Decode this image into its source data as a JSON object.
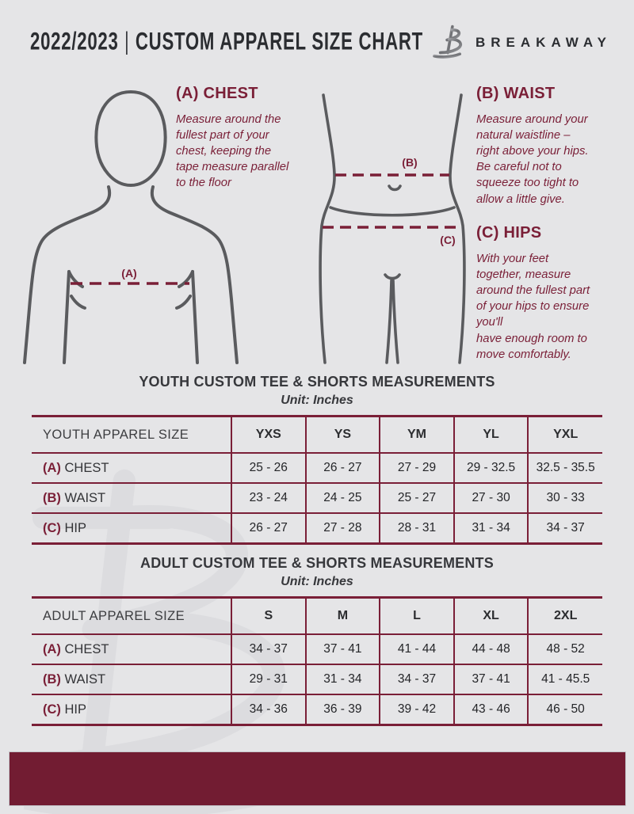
{
  "header": {
    "season": "2022/2023",
    "divider": "|",
    "title": "CUSTOM APPAREL SIZE CHART",
    "brand": "BREAKAWAY",
    "logo_icon": "breakaway-b-monogram"
  },
  "colors": {
    "background": "#e5e5e7",
    "maroon_text": "#7a1f37",
    "footer_bar": "#721c32",
    "figure_outline": "#5a5b5e",
    "dark_text": "#2b2d31"
  },
  "measure_guide": {
    "chest": {
      "heading": "(A) CHEST",
      "body": "Measure around the\nfullest part of your\nchest, keeping the\ntape measure parallel\nto the floor",
      "marker": "(A)"
    },
    "waist": {
      "heading": "(B) WAIST",
      "body": "Measure around your\nnatural waistline –\nright above your hips.\nBe careful not to\nsqueeze too tight to\nallow a little give.",
      "marker": "(B)"
    },
    "hips": {
      "heading": "(C) HIPS",
      "body": "With your feet\ntogether, measure\naround the fullest part\nof your hips to ensure\nyou'll\nhave enough room to\nmove comfortably.",
      "marker": "(C)"
    }
  },
  "youth_table": {
    "title": "YOUTH CUSTOM TEE & SHORTS MEASUREMENTS",
    "unit": "Unit: Inches",
    "corner_label": "YOUTH APPAREL SIZE",
    "sizes": [
      "YXS",
      "YS",
      "YM",
      "YL",
      "YXL"
    ],
    "rows": [
      {
        "prefix": "(A)",
        "label": "CHEST",
        "values": [
          "25 - 26",
          "26 - 27",
          "27 - 29",
          "29 - 32.5",
          "32.5 - 35.5"
        ]
      },
      {
        "prefix": "(B)",
        "label": "WAIST",
        "values": [
          "23 - 24",
          "24 - 25",
          "25 - 27",
          "27 - 30",
          "30 - 33"
        ]
      },
      {
        "prefix": "(C)",
        "label": "HIP",
        "values": [
          "26 - 27",
          "27 - 28",
          "28 - 31",
          "31 - 34",
          "34 - 37"
        ]
      }
    ]
  },
  "adult_table": {
    "title": "ADULT CUSTOM TEE & SHORTS MEASUREMENTS",
    "unit": "Unit: Inches",
    "corner_label": "ADULT APPAREL SIZE",
    "sizes": [
      "S",
      "M",
      "L",
      "XL",
      "2XL"
    ],
    "rows": [
      {
        "prefix": "(A)",
        "label": "CHEST",
        "values": [
          "34 - 37",
          "37 - 41",
          "41 - 44",
          "44 - 48",
          "48 - 52"
        ]
      },
      {
        "prefix": "(B)",
        "label": "WAIST",
        "values": [
          "29 - 31",
          "31 - 34",
          "34 - 37",
          "37 - 41",
          "41 - 45.5"
        ]
      },
      {
        "prefix": "(C)",
        "label": "HIP",
        "values": [
          "34 - 36",
          "36 - 39",
          "39 - 42",
          "43 - 46",
          "46 - 50"
        ]
      }
    ]
  }
}
